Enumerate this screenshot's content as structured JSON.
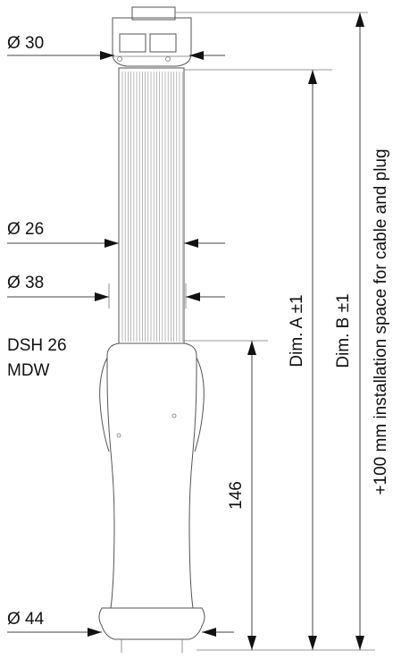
{
  "labels": {
    "dia_30": "Ø 30",
    "dia_26": "Ø 26",
    "dia_38": "Ø 38",
    "dia_44": "Ø 44",
    "model_line1": "DSH 26",
    "model_line2": "MDW",
    "dim_146": "146",
    "dim_a": "Dim.  A  ±1",
    "dim_b": "Dim.  B  ±1",
    "install_note": "+100 mm installation space for cable and plug"
  }
}
